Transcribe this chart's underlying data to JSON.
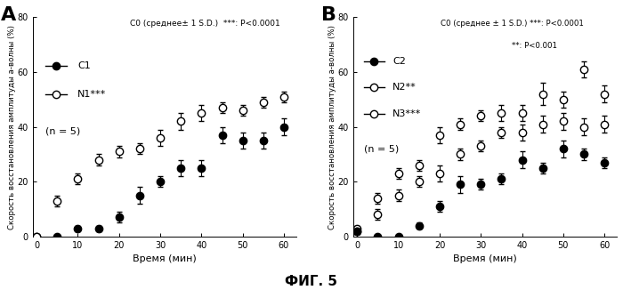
{
  "x": [
    0,
    5,
    10,
    15,
    20,
    25,
    30,
    35,
    40,
    45,
    50,
    55,
    60
  ],
  "panel_A": {
    "label": "A",
    "C1_y": [
      0,
      0,
      3,
      3,
      7,
      15,
      20,
      25,
      25,
      37,
      35,
      35,
      40
    ],
    "C1_err": [
      0,
      0,
      1,
      1,
      2,
      3,
      2,
      3,
      3,
      3,
      3,
      3,
      3
    ],
    "N1_y": [
      0,
      13,
      21,
      28,
      31,
      32,
      36,
      42,
      45,
      47,
      46,
      49,
      51
    ],
    "N1_err": [
      0,
      2,
      2,
      2,
      2,
      2,
      3,
      3,
      3,
      2,
      2,
      2,
      2
    ],
    "ann_text": "C0 (среднее± 1 S.D.)  ***: P<0.0001",
    "legend_C1": "C1",
    "legend_N1": "N1***",
    "legend_n": "(n = 5)",
    "ylabel": "Скорость восстановления амплитуды а-волны (%)",
    "xlabel": "Время (мин)"
  },
  "panel_B": {
    "label": "B",
    "C2_y": [
      2,
      0,
      0,
      4,
      11,
      19,
      19,
      21,
      28,
      25,
      32,
      30,
      27
    ],
    "C2_err": [
      1,
      0,
      0,
      1,
      2,
      3,
      2,
      2,
      3,
      2,
      3,
      2,
      2
    ],
    "N2_y": [
      2,
      8,
      15,
      20,
      23,
      30,
      33,
      38,
      38,
      41,
      42,
      40,
      41
    ],
    "N2_err": [
      1,
      2,
      2,
      2,
      3,
      2,
      2,
      2,
      3,
      3,
      3,
      3,
      3
    ],
    "N3_y": [
      3,
      14,
      23,
      26,
      37,
      41,
      44,
      45,
      45,
      52,
      50,
      61,
      52
    ],
    "N3_err": [
      1,
      2,
      2,
      2,
      3,
      2,
      2,
      3,
      3,
      4,
      3,
      3,
      3
    ],
    "ann_text1": "C0 (среднее ± 1 S.D.) ***: P<0.0001",
    "ann_text2": "**: P<0.001",
    "legend_C2": "C2",
    "legend_N2": "N2**",
    "legend_N3": "N3***",
    "legend_n": "(n = 5)",
    "ylabel": "Скорость восстановления амплитуды а-волны (%)",
    "xlabel": "Время (мин)"
  },
  "fig_label": "ФИГ. 5",
  "ylim": [
    0,
    80
  ],
  "yticks": [
    0,
    20,
    40,
    60,
    80
  ],
  "xticks": [
    0,
    10,
    20,
    30,
    40,
    50,
    60
  ],
  "bg_color": "#ffffff",
  "marker_size": 6,
  "line_width": 1.0,
  "cap_size": 2.5,
  "elinewidth": 0.8
}
